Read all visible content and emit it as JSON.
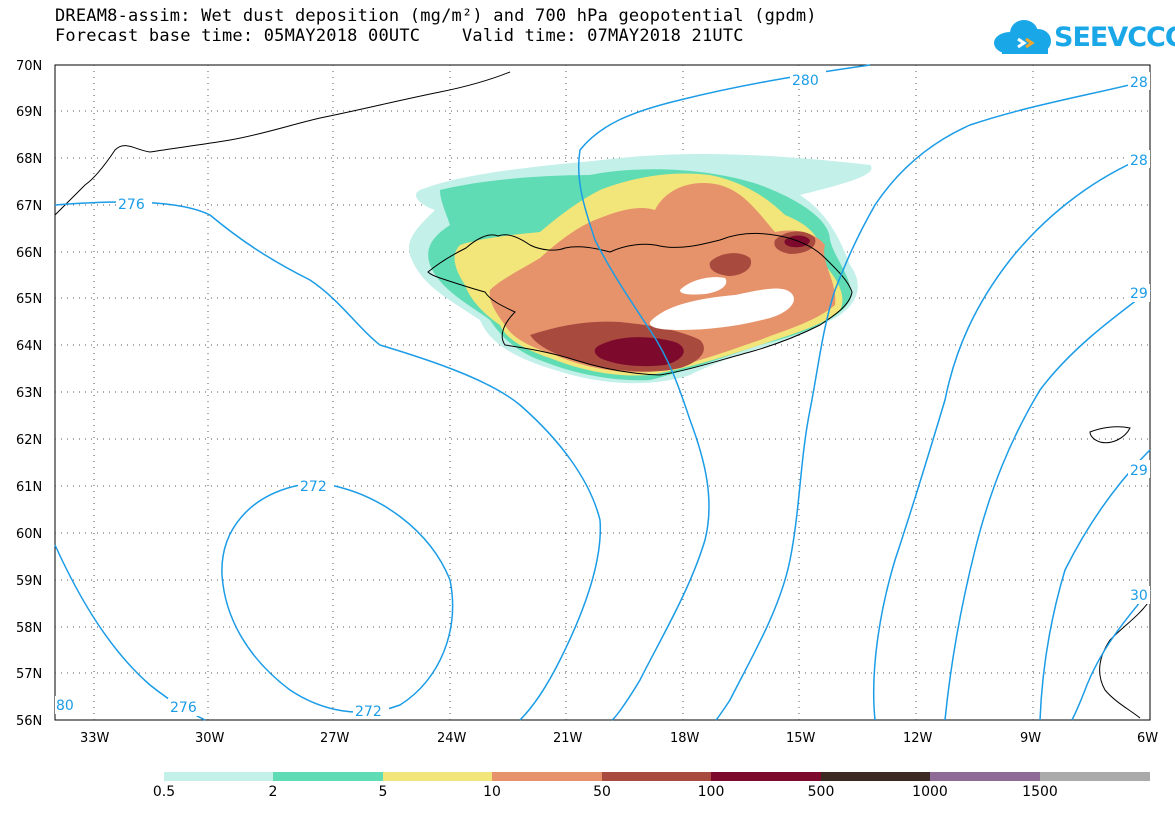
{
  "header": {
    "title_line1": "DREAM8-assim: Wet dust deposition (mg/m²) and 700 hPa geopotential (gpdm)",
    "title_line2": "Forecast base time: 05MAY2018 00UTC    Valid time: 07MAY2018 21UTC"
  },
  "logo": {
    "text": "SEEVCCC",
    "color": "#1aa7e8"
  },
  "map": {
    "lat_labels": [
      "70N",
      "69N",
      "68N",
      "67N",
      "66N",
      "65N",
      "64N",
      "63N",
      "62N",
      "61N",
      "60N",
      "59N",
      "58N",
      "57N",
      "56N"
    ],
    "lon_labels": [
      "33W",
      "30W",
      "27W",
      "24W",
      "21W",
      "18W",
      "15W",
      "12W",
      "9W",
      "6W"
    ],
    "lat_range": [
      56,
      70
    ],
    "lon_range": [
      -34.5,
      -6
    ],
    "gridlines": "dotted",
    "contour_color": "#1b9ce6",
    "contour_labels": [
      "280",
      "28",
      "276",
      "28",
      "29",
      "272",
      "29",
      "30",
      "80",
      "276",
      "272"
    ]
  },
  "legend": {
    "thresholds": [
      "0.5",
      "2",
      "5",
      "10",
      "50",
      "100",
      "500",
      "1000",
      "1500"
    ],
    "colors": [
      "#c3f0e9",
      "#5fdcb3",
      "#f2e57a",
      "#e6936b",
      "#a94a3f",
      "#7d0a2c",
      "#3b2a22",
      "#8e6a96",
      "#aaaaaa"
    ]
  }
}
